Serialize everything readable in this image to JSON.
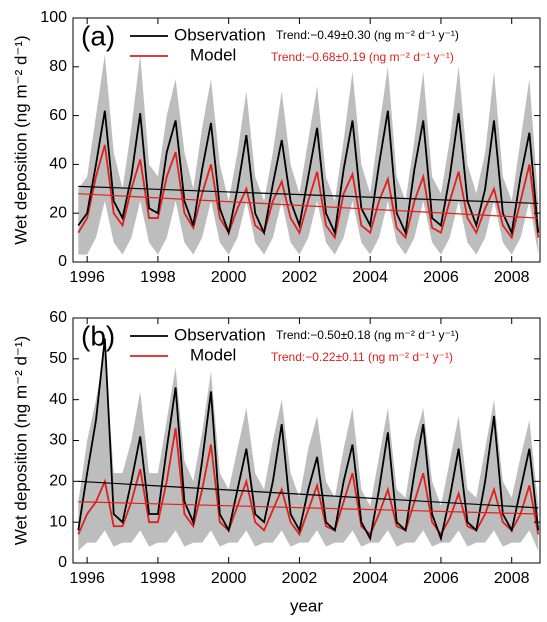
{
  "chart_data": [
    {
      "type": "line",
      "panel_label": "(a)",
      "ylabel": "Wet deposition (ng m⁻² d⁻¹)",
      "x": [
        1995.75,
        1996.0,
        1996.25,
        1996.5,
        1996.75,
        1997.0,
        1997.25,
        1997.5,
        1997.75,
        1998.0,
        1998.25,
        1998.5,
        1998.75,
        1999.0,
        1999.25,
        1999.5,
        1999.75,
        2000.0,
        2000.25,
        2000.5,
        2000.75,
        2001.0,
        2001.25,
        2001.5,
        2001.75,
        2002.0,
        2002.25,
        2002.5,
        2002.75,
        2003.0,
        2003.25,
        2003.5,
        2003.75,
        2004.0,
        2004.25,
        2004.5,
        2004.75,
        2005.0,
        2005.25,
        2005.5,
        2005.75,
        2006.0,
        2006.25,
        2006.5,
        2006.75,
        2007.0,
        2007.25,
        2007.5,
        2007.75,
        2008.0,
        2008.25,
        2008.5,
        2008.75
      ],
      "xlim": [
        1995.6,
        2008.8
      ],
      "xticks": [
        1996,
        1998,
        2000,
        2002,
        2004,
        2006,
        2008
      ],
      "ylim": [
        0,
        100
      ],
      "yticks": [
        0,
        20,
        40,
        60,
        80,
        100
      ],
      "band": {
        "color": "#bdbdbd",
        "upper": [
          30,
          35,
          60,
          85,
          45,
          30,
          55,
          85,
          40,
          35,
          60,
          75,
          45,
          30,
          55,
          75,
          40,
          25,
          45,
          70,
          35,
          25,
          45,
          70,
          40,
          28,
          50,
          72,
          35,
          25,
          50,
          78,
          40,
          28,
          55,
          80,
          35,
          25,
          50,
          78,
          35,
          28,
          50,
          80,
          40,
          28,
          45,
          78,
          35,
          25,
          50,
          75,
          25
        ],
        "lower": [
          3,
          3,
          10,
          25,
          8,
          3,
          10,
          25,
          8,
          3,
          10,
          25,
          8,
          3,
          10,
          25,
          8,
          3,
          10,
          25,
          8,
          3,
          10,
          25,
          8,
          3,
          10,
          25,
          8,
          3,
          10,
          25,
          8,
          3,
          10,
          25,
          8,
          3,
          10,
          25,
          8,
          3,
          10,
          25,
          8,
          3,
          10,
          25,
          8,
          3,
          10,
          25,
          3
        ]
      },
      "trend_x": [
        1995.75,
        2008.75
      ],
      "series": [
        {
          "name": "Observation",
          "color": "#000000",
          "trend_label": "Trend:−0.49±0.30 (ng m⁻² d⁻¹ y⁻¹)",
          "trend": [
            31,
            24
          ],
          "values": [
            15,
            20,
            40,
            62,
            25,
            18,
            35,
            61,
            22,
            20,
            45,
            58,
            25,
            15,
            38,
            57,
            22,
            12,
            30,
            52,
            20,
            12,
            32,
            50,
            25,
            15,
            35,
            55,
            20,
            12,
            38,
            58,
            22,
            15,
            40,
            62,
            20,
            12,
            38,
            58,
            18,
            15,
            35,
            61,
            25,
            15,
            30,
            58,
            20,
            12,
            35,
            53,
            12
          ]
        },
        {
          "name": "Model",
          "color": "#e0201b",
          "trend_label": "Trend:−0.68±0.19 (ng m⁻² d⁻¹ y⁻¹)",
          "trend": [
            28,
            18
          ],
          "values": [
            12,
            18,
            35,
            48,
            20,
            15,
            30,
            42,
            18,
            18,
            35,
            45,
            20,
            14,
            28,
            40,
            18,
            12,
            22,
            30,
            15,
            12,
            25,
            33,
            18,
            12,
            25,
            37,
            15,
            10,
            28,
            36,
            15,
            12,
            25,
            34,
            14,
            10,
            25,
            35,
            14,
            12,
            25,
            37,
            18,
            12,
            22,
            30,
            15,
            10,
            25,
            40,
            10
          ]
        }
      ]
    },
    {
      "type": "line",
      "panel_label": "(b)",
      "ylabel": "Wet deposition (ng m⁻² d⁻¹)",
      "xlabel": "year",
      "x": [
        1995.75,
        1996.0,
        1996.25,
        1996.5,
        1996.75,
        1997.0,
        1997.25,
        1997.5,
        1997.75,
        1998.0,
        1998.25,
        1998.5,
        1998.75,
        1999.0,
        1999.25,
        1999.5,
        1999.75,
        2000.0,
        2000.25,
        2000.5,
        2000.75,
        2001.0,
        2001.25,
        2001.5,
        2001.75,
        2002.0,
        2002.25,
        2002.5,
        2002.75,
        2003.0,
        2003.25,
        2003.5,
        2003.75,
        2004.0,
        2004.25,
        2004.5,
        2004.75,
        2005.0,
        2005.25,
        2005.5,
        2005.75,
        2006.0,
        2006.25,
        2006.5,
        2006.75,
        2007.0,
        2007.25,
        2007.5,
        2007.75,
        2008.0,
        2008.25,
        2008.5,
        2008.75
      ],
      "xlim": [
        1995.6,
        2008.8
      ],
      "xticks": [
        1996,
        1998,
        2000,
        2002,
        2004,
        2006,
        2008
      ],
      "ylim": [
        0,
        60
      ],
      "yticks": [
        0,
        10,
        20,
        30,
        40,
        50,
        60
      ],
      "band": {
        "color": "#bdbdbd",
        "upper": [
          15,
          30,
          40,
          52,
          22,
          22,
          30,
          42,
          22,
          22,
          35,
          48,
          25,
          20,
          32,
          47,
          22,
          18,
          28,
          38,
          22,
          18,
          30,
          40,
          22,
          16,
          28,
          36,
          20,
          16,
          28,
          38,
          18,
          14,
          26,
          38,
          18,
          16,
          30,
          38,
          20,
          14,
          25,
          36,
          18,
          16,
          28,
          40,
          20,
          16,
          26,
          35,
          14
        ],
        "lower": [
          3,
          5,
          5,
          8,
          4,
          5,
          5,
          8,
          4,
          5,
          5,
          8,
          4,
          5,
          5,
          8,
          4,
          5,
          5,
          8,
          4,
          5,
          5,
          8,
          4,
          5,
          5,
          8,
          4,
          5,
          5,
          8,
          4,
          5,
          5,
          8,
          4,
          5,
          5,
          8,
          4,
          5,
          5,
          8,
          4,
          5,
          5,
          8,
          4,
          5,
          5,
          8,
          3
        ]
      },
      "trend_x": [
        1995.75,
        2008.75
      ],
      "series": [
        {
          "name": "Observation",
          "color": "#000000",
          "trend_label": "Trend:−0.50±0.18 (ng m⁻² d⁻¹ y⁻¹)",
          "trend": [
            20,
            13.5
          ],
          "values": [
            8,
            22,
            35,
            55,
            12,
            10,
            20,
            31,
            12,
            12,
            28,
            43,
            15,
            10,
            25,
            42,
            12,
            8,
            18,
            28,
            12,
            10,
            20,
            34,
            12,
            8,
            18,
            26,
            10,
            8,
            20,
            29,
            10,
            6,
            18,
            32,
            10,
            8,
            22,
            34,
            12,
            6,
            16,
            28,
            10,
            8,
            20,
            36,
            12,
            8,
            18,
            28,
            8
          ]
        },
        {
          "name": "Model",
          "color": "#e0201b",
          "trend_label": "Trend:−0.22±0.11 (ng m⁻² d⁻¹ y⁻¹)",
          "trend": [
            15,
            12
          ],
          "values": [
            7,
            12,
            15,
            20,
            9,
            9,
            15,
            23,
            10,
            10,
            20,
            33,
            12,
            9,
            18,
            29,
            10,
            8,
            14,
            20,
            10,
            8,
            13,
            18,
            10,
            7,
            13,
            19,
            9,
            8,
            15,
            22,
            9,
            7,
            12,
            18,
            9,
            8,
            15,
            22,
            10,
            7,
            11,
            17,
            9,
            8,
            12,
            18,
            10,
            8,
            12,
            19,
            7
          ]
        }
      ]
    }
  ]
}
